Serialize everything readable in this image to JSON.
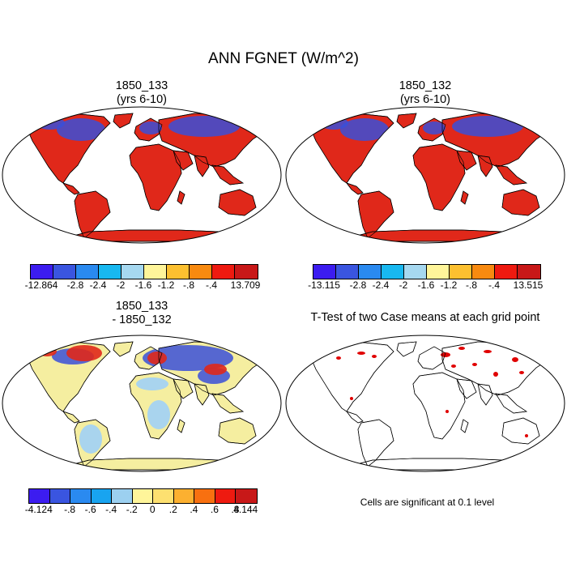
{
  "title": "ANN FGNET (W/m^2)",
  "panels": [
    {
      "line1": "1850_133",
      "line2": "(yrs 6-10)"
    },
    {
      "line1": "1850_132",
      "line2": "(yrs 6-10)"
    },
    {
      "line1": "1850_133",
      "line2": "- 1850_132"
    },
    {
      "line1": "T-Test of two Case means at each grid point",
      "line2": ""
    }
  ],
  "colorbars": [
    {
      "colors": [
        "#3c1cf0",
        "#3a55e0",
        "#2a8af0",
        "#18b8f0",
        "#a6d8f0",
        "#fff59a",
        "#fcc030",
        "#f88a10",
        "#ee1a10",
        "#c81818"
      ],
      "labels": [
        "-12.864",
        "-2.8",
        "-2.4",
        "-2",
        "-1.6",
        "-1.2",
        "-.8",
        "-.4",
        "13.709"
      ]
    },
    {
      "colors": [
        "#3c1cf0",
        "#3a55e0",
        "#2a8af0",
        "#18b8f0",
        "#a6d8f0",
        "#fff59a",
        "#fcc030",
        "#f88a10",
        "#ee1a10",
        "#c81818"
      ],
      "labels": [
        "-13.115",
        "-2.8",
        "-2.4",
        "-2",
        "-1.6",
        "-1.2",
        "-.8",
        "-.4",
        "13.515"
      ]
    },
    {
      "colors": [
        "#3c1cf0",
        "#3a55e0",
        "#2a8af0",
        "#18a4f0",
        "#9cd0f0",
        "#fff59a",
        "#fde070",
        "#fcb030",
        "#f87010",
        "#ee1a10",
        "#c81818"
      ],
      "labels": [
        "-4.124",
        "-.8",
        "-.6",
        "-.4",
        "-.2",
        "0",
        ".2",
        ".4",
        ".6",
        ".8",
        "4.144"
      ]
    }
  ],
  "note": "Cells are significant at 0.1 level",
  "map_colors": {
    "warm": "#e0281a",
    "cold_blue": "#3a4fd8",
    "pale": "#f5eea0",
    "light_blue": "#a9d4ee",
    "ttest": "#e00000"
  }
}
